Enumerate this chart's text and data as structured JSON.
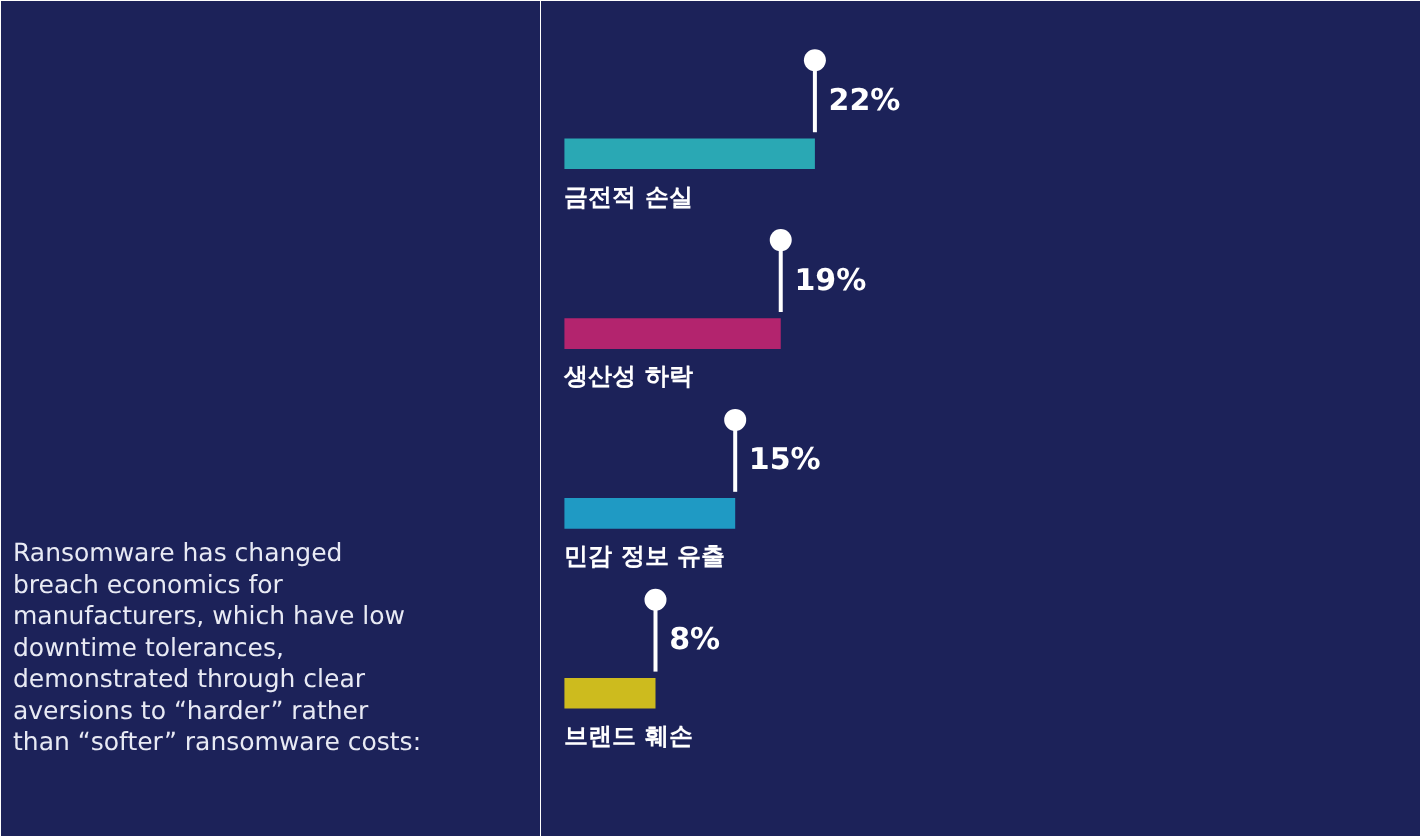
{
  "chart_data": {
    "type": "bar",
    "orientation": "horizontal",
    "data_labels": true,
    "categories": [
      "금전적 손실",
      "생산성 하락",
      "민감 정보 유출",
      "브랜드 훼손"
    ],
    "values": [
      22,
      19,
      15,
      8
    ],
    "colors": [
      "#2aa8b4",
      "#b3246e",
      "#1f9ac4",
      "#cdbb1e"
    ],
    "value_labels": [
      "22%",
      "19%",
      "15%",
      "8%"
    ],
    "annotations": [
      "Ransomware has changed\nbreach economics for\nmanufacturers, which have low\ndowntime tolerances,\ndemonstrated through clear\naversions to “harder” rather\nthan “softer” ransomware costs:"
    ]
  }
}
